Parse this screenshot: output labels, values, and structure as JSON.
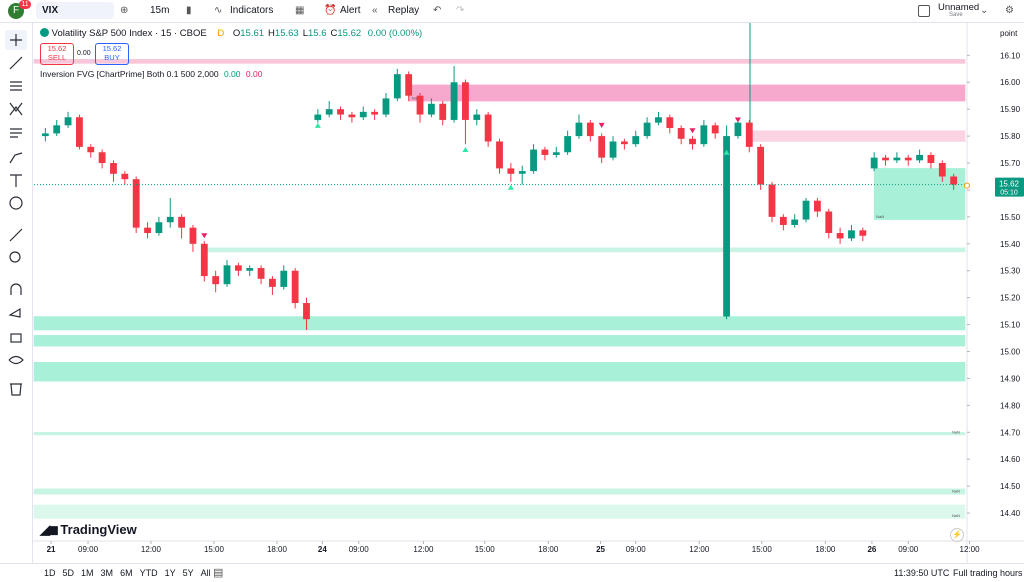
{
  "toolbar": {
    "avatar": "F",
    "badge": "11",
    "symbol": "VIX",
    "interval": "15m",
    "indicators": "Indicators",
    "alert": "Alert",
    "replay": "Replay",
    "layout": "Unnamed",
    "save": "Save"
  },
  "legend": {
    "title": "Volatility S&P 500 Index · 15 · CBOE",
    "flag": "D",
    "ohlc": [
      {
        "label": "O",
        "value": 15.61
      },
      {
        "label": "H",
        "value": 15.63
      },
      {
        "label": "L",
        "value": 15.6
      },
      {
        "label": "C",
        "value": 15.62
      }
    ],
    "change": "0.00 (0.00%)",
    "sell": {
      "price": 15.62,
      "label": "SELL"
    },
    "spread": "0.00",
    "buy": {
      "price": 15.62,
      "label": "BUY"
    },
    "indicator": "Inversion FVG [ChartPrime] Both 0.1 500 2,000",
    "indicator_values": [
      "0.00",
      "0.00"
    ]
  },
  "chart_data": {
    "type": "candlestick",
    "axis_title": "point",
    "up_color": "#089981",
    "down_color": "#f23645",
    "xlim": [
      -1,
      81
    ],
    "ylim": [
      14.3,
      16.22
    ],
    "opens": [
      15.8,
      15.81,
      15.84,
      15.87,
      15.76,
      15.74,
      15.7,
      15.66,
      15.64,
      15.46,
      15.44,
      15.48,
      15.5,
      15.46,
      15.4,
      15.28,
      15.25,
      15.32,
      15.3,
      15.31,
      15.27,
      15.24,
      15.3,
      15.18,
      15.86,
      15.88,
      15.9,
      15.88,
      15.87,
      15.89,
      15.88,
      15.94,
      16.03,
      15.95,
      15.88,
      15.92,
      15.86,
      16.0,
      15.86,
      15.88,
      15.78,
      15.68,
      15.66,
      15.67,
      15.75,
      15.73,
      15.74,
      15.8,
      15.85,
      15.8,
      15.72,
      15.78,
      15.77,
      15.8,
      15.85,
      15.87,
      15.83,
      15.79,
      15.77,
      15.84,
      15.13,
      15.8,
      15.85,
      15.76,
      15.62,
      15.5,
      15.47,
      15.49,
      15.56,
      15.52,
      15.44,
      15.42,
      15.45,
      15.68,
      15.72,
      15.71,
      15.72,
      15.71,
      15.73,
      15.7,
      15.65
    ],
    "highs": [
      15.83,
      15.86,
      15.89,
      15.88,
      15.77,
      15.75,
      15.71,
      15.67,
      15.65,
      15.48,
      15.5,
      15.57,
      15.51,
      15.47,
      15.41,
      15.3,
      15.34,
      15.33,
      15.32,
      15.32,
      15.28,
      15.32,
      15.31,
      15.2,
      15.9,
      15.93,
      15.91,
      15.89,
      15.91,
      15.9,
      15.96,
      16.05,
      16.04,
      15.96,
      15.94,
      15.93,
      16.06,
      16.01,
      15.9,
      15.89,
      15.79,
      15.7,
      15.69,
      15.77,
      15.76,
      15.76,
      15.82,
      15.88,
      15.86,
      15.81,
      15.8,
      15.79,
      15.82,
      15.87,
      15.89,
      15.88,
      15.84,
      15.8,
      15.86,
      15.85,
      15.84,
      15.87,
      15.86,
      15.77,
      15.63,
      15.51,
      15.51,
      15.57,
      15.57,
      15.53,
      15.46,
      15.47,
      15.46,
      15.74,
      15.73,
      15.74,
      15.73,
      15.75,
      15.74,
      15.71,
      15.66
    ],
    "lows": [
      15.78,
      15.8,
      15.83,
      15.75,
      15.72,
      15.68,
      15.63,
      15.62,
      15.44,
      15.42,
      15.43,
      15.46,
      15.42,
      15.37,
      15.26,
      15.22,
      15.24,
      15.28,
      15.28,
      15.25,
      15.21,
      15.23,
      15.16,
      15.08,
      15.85,
      15.87,
      15.86,
      15.85,
      15.86,
      15.86,
      15.87,
      15.93,
      15.93,
      15.85,
      15.87,
      15.84,
      15.85,
      15.77,
      15.84,
      15.76,
      15.66,
      15.63,
      15.62,
      15.66,
      15.71,
      15.72,
      15.73,
      15.79,
      15.78,
      15.7,
      15.71,
      15.75,
      15.76,
      15.79,
      15.84,
      15.81,
      15.77,
      15.75,
      15.76,
      15.79,
      15.12,
      15.79,
      15.74,
      15.6,
      15.48,
      15.45,
      15.46,
      15.48,
      15.5,
      15.42,
      15.4,
      15.41,
      15.41,
      15.67,
      15.69,
      15.7,
      15.69,
      15.7,
      15.68,
      15.63,
      15.6
    ],
    "closes": [
      15.81,
      15.84,
      15.87,
      15.76,
      15.74,
      15.7,
      15.66,
      15.64,
      15.46,
      15.44,
      15.48,
      15.5,
      15.46,
      15.4,
      15.28,
      15.25,
      15.32,
      15.3,
      15.31,
      15.27,
      15.24,
      15.3,
      15.18,
      15.12,
      15.88,
      15.9,
      15.88,
      15.87,
      15.89,
      15.88,
      15.94,
      16.03,
      15.95,
      15.88,
      15.92,
      15.86,
      16.0,
      15.86,
      15.88,
      15.78,
      15.68,
      15.66,
      15.67,
      15.75,
      15.73,
      15.74,
      15.8,
      15.85,
      15.8,
      15.72,
      15.78,
      15.77,
      15.8,
      15.85,
      15.87,
      15.83,
      15.79,
      15.77,
      15.84,
      15.81,
      15.8,
      15.85,
      15.76,
      15.62,
      15.5,
      15.47,
      15.49,
      15.56,
      15.52,
      15.44,
      15.42,
      15.45,
      15.43,
      15.72,
      15.71,
      15.72,
      15.71,
      15.73,
      15.7,
      15.65,
      15.62
    ],
    "zones": [
      {
        "from": -1,
        "to": 81,
        "top": 16.085,
        "bottom": 16.07,
        "color": "#f7c6d9"
      },
      {
        "from": 32,
        "to": 81,
        "top": 15.99,
        "bottom": 15.93,
        "color": "#f7a8cd",
        "label": "NaN"
      },
      {
        "from": 62,
        "to": 81,
        "top": 15.82,
        "bottom": 15.78,
        "color": "#fbd3e3"
      },
      {
        "from": 14,
        "to": 81,
        "top": 15.385,
        "bottom": 15.37,
        "color": "#c8f4e4"
      },
      {
        "from": -1,
        "to": 81,
        "top": 15.13,
        "bottom": 15.08,
        "color": "#a8f0d8"
      },
      {
        "from": -1,
        "to": 81,
        "top": 15.06,
        "bottom": 15.02,
        "color": "#a8f0d8"
      },
      {
        "from": -1,
        "to": 81,
        "top": 14.96,
        "bottom": 14.89,
        "color": "#a8f0d8"
      },
      {
        "from": -1,
        "to": 81,
        "top": 14.7,
        "bottom": 14.69,
        "color": "#c8f4e4",
        "label": "NaN"
      },
      {
        "from": -1,
        "to": 81,
        "top": 14.49,
        "bottom": 14.47,
        "color": "#c8f4e4",
        "label": "NaN"
      },
      {
        "from": -1,
        "to": 81,
        "top": 14.43,
        "bottom": 14.38,
        "color": "#dcf8ed",
        "label": "NaN"
      },
      {
        "from": 73,
        "to": 81,
        "top": 15.68,
        "bottom": 15.49,
        "color": "#a8f0d8",
        "label": "NaN"
      }
    ],
    "signals": [
      {
        "index": 24,
        "price": 15.84,
        "dir": "up"
      },
      {
        "index": 37,
        "price": 15.75,
        "dir": "up"
      },
      {
        "index": 41,
        "price": 15.61,
        "dir": "up"
      },
      {
        "index": 60,
        "price": 15.74,
        "dir": "up"
      },
      {
        "index": 14,
        "price": 15.43,
        "dir": "down"
      },
      {
        "index": 49,
        "price": 15.84,
        "dir": "down"
      },
      {
        "index": 57,
        "price": 15.82,
        "dir": "down"
      },
      {
        "index": 61,
        "price": 15.86,
        "dir": "down"
      }
    ],
    "last": {
      "price": 15.62,
      "countdown": "05:10"
    },
    "yticks": [
      {
        "value": 16.1,
        "label": "16.10"
      },
      {
        "value": 16,
        "label": "16.00"
      },
      {
        "value": 15.9,
        "label": "15.90"
      },
      {
        "value": 15.8,
        "label": "15.80"
      },
      {
        "value": 15.7,
        "label": "15.70"
      },
      {
        "value": 15.6,
        "label": "15.60"
      },
      {
        "value": 15.5,
        "label": "15.50"
      },
      {
        "value": 15.4,
        "label": "15.40"
      },
      {
        "value": 15.3,
        "label": "15.30"
      },
      {
        "value": 15.2,
        "label": "15.20"
      },
      {
        "value": 15.1,
        "label": "15.10"
      },
      {
        "value": 15,
        "label": "15.00"
      },
      {
        "value": 14.9,
        "label": "14.90"
      },
      {
        "value": 14.8,
        "label": "14.80"
      },
      {
        "value": 14.7,
        "label": "14.70"
      },
      {
        "value": 14.6,
        "label": "14.60"
      },
      {
        "value": 14.5,
        "label": "14.50"
      },
      {
        "value": 14.4,
        "label": "14.40"
      }
    ],
    "xticks": [
      {
        "value": 0.5,
        "label": "21"
      },
      {
        "value": 3.76,
        "label": "09:00"
      },
      {
        "value": 9.3,
        "label": "12:00"
      },
      {
        "value": 14.85,
        "label": "15:00"
      },
      {
        "value": 20.4,
        "label": "18:00"
      },
      {
        "value": 24.4,
        "label": "24"
      },
      {
        "value": 27.6,
        "label": "09:00"
      },
      {
        "value": 33.3,
        "label": "12:00"
      },
      {
        "value": 38.7,
        "label": "15:00"
      },
      {
        "value": 44.3,
        "label": "18:00"
      },
      {
        "value": 48.9,
        "label": "25"
      },
      {
        "value": 52,
        "label": "09:00"
      },
      {
        "value": 57.6,
        "label": "12:00"
      },
      {
        "value": 63.1,
        "label": "15:00"
      },
      {
        "value": 68.7,
        "label": "18:00"
      },
      {
        "value": 72.8,
        "label": "26"
      },
      {
        "value": 76,
        "label": "09:00"
      },
      {
        "value": 81.4,
        "label": "12:00"
      }
    ]
  },
  "brand": "TradingView",
  "footer": {
    "ranges": [
      "1D",
      "5D",
      "1M",
      "3M",
      "6M",
      "YTD",
      "1Y",
      "5Y",
      "All"
    ],
    "clock": "11:39:50 UTC",
    "session": "Full trading hours"
  }
}
